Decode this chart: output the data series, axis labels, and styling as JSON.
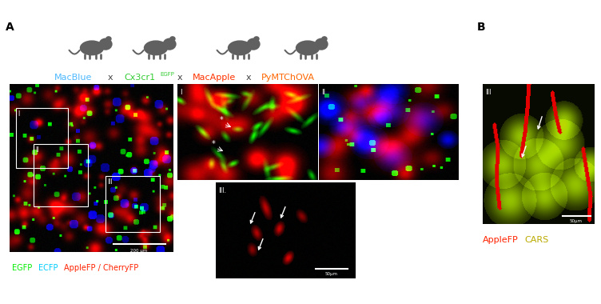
{
  "fig_width": 7.52,
  "fig_height": 3.8,
  "dpi": 100,
  "bg_color": "#ffffff",
  "panel_A_label": "A",
  "panel_B_label": "B",
  "label_macblue": "MacBlue",
  "label_macblue_color": "#4db8ff",
  "label_cx3cr1": "Cx3cr1",
  "label_cx3cr1_super": "EGFP",
  "label_cx3cr1_color": "#33cc33",
  "label_macapple": "MacApple",
  "label_macapple_color": "#ff3300",
  "label_pymtchova": "PyMTChOVA",
  "label_pymtchova_color": "#ff6600",
  "cross_text": "x",
  "legend_egfp": "EGFP",
  "legend_egfp_color": "#00ee00",
  "legend_ecfp": "ECFP",
  "legend_ecfp_color": "#00ccff",
  "legend_applefp": "AppleFP / CherryFP",
  "legend_applefp_color": "#ff2200",
  "scalebar_main": "200 μm",
  "scalebar_zoom": "50μm",
  "legend_b_applefp": "AppleFP",
  "legend_b_applefp_color": "#ff2200",
  "legend_b_cars": "CARS",
  "legend_b_cars_color": "#bbaa00",
  "top_line_color": "#999999"
}
